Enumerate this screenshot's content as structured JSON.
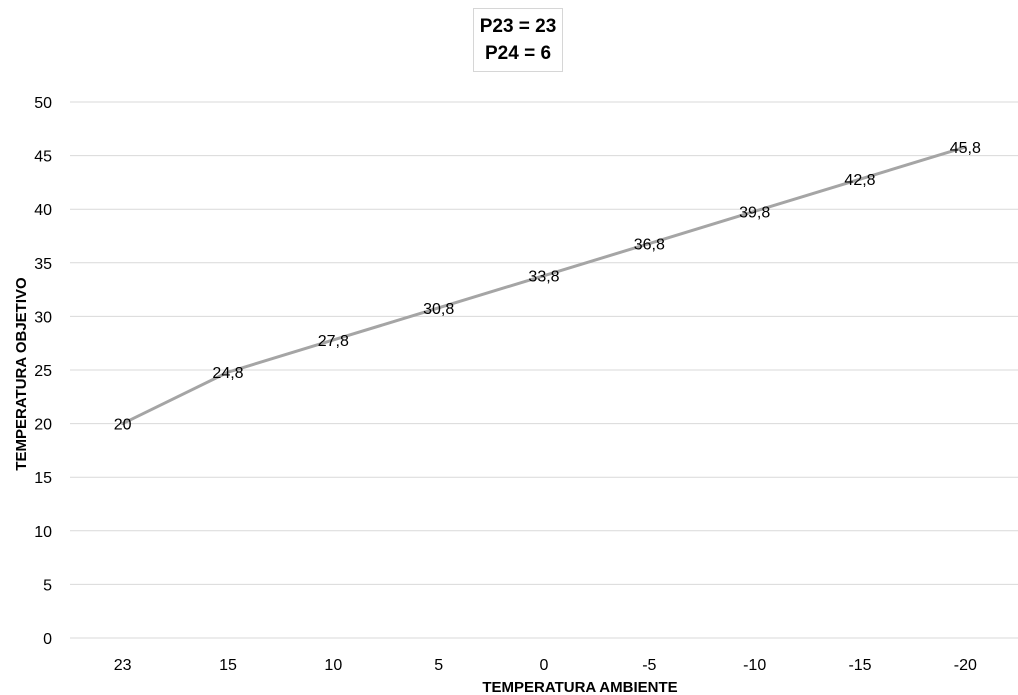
{
  "chart_data": {
    "type": "line",
    "title_lines": [
      "P23 = 23",
      "P24 = 6"
    ],
    "xlabel": "TEMPERATURA AMBIENTE",
    "ylabel": "TEMPERATURA OBJETIVO",
    "categories": [
      "23",
      "15",
      "10",
      "5",
      "0",
      "-5",
      "-10",
      "-15",
      "-20"
    ],
    "series": [
      {
        "values": [
          20,
          24.8,
          27.8,
          30.8,
          33.8,
          36.8,
          39.8,
          42.8,
          45.8
        ],
        "labels": [
          "20",
          "24,8",
          "27,8",
          "30,8",
          "33,8",
          "36,8",
          "39,8",
          "42,8",
          "45,8"
        ],
        "color": "#a5a5a5"
      }
    ],
    "ylim": [
      0,
      50
    ],
    "yticks": [
      0,
      5,
      10,
      15,
      20,
      25,
      30,
      35,
      40,
      45,
      50
    ],
    "grid": true,
    "gridline_color": "#d9d9d9",
    "legend": "none"
  }
}
